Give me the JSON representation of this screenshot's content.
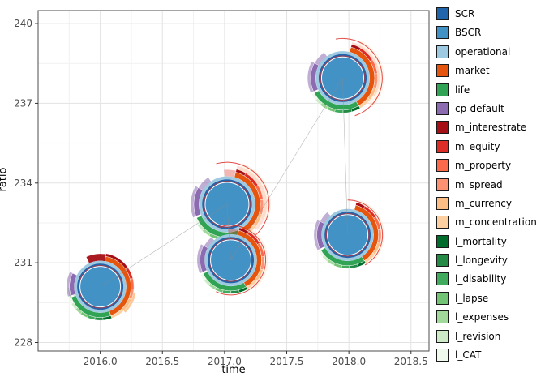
{
  "chart_data": {
    "type": "scatter",
    "title": "",
    "xlabel": "time",
    "ylabel": "ratio",
    "xlim": [
      2015.5,
      2018.645
    ],
    "ylim": [
      227.68,
      240.49
    ],
    "xtick_values": [
      2016.0,
      2016.5,
      2017.0,
      2017.5,
      2018.0,
      2018.5
    ],
    "xtick_labels": [
      "2016.0",
      "2016.5",
      "2017.0",
      "2017.5",
      "2018.0",
      "2018.5"
    ],
    "ytick_values": [
      228,
      231,
      234,
      237,
      240
    ],
    "ytick_labels": [
      "228",
      "231",
      "234",
      "237",
      "240"
    ],
    "grid": true,
    "legend_position": "right",
    "path_order": [
      0,
      1,
      2,
      4,
      3
    ],
    "colors": {
      "SCR": "#2166AC",
      "BSCR": "#4292C6",
      "operational": "#9ECAE1",
      "market": "#E6550D",
      "life": "#31A354",
      "cp_default": "#8C6BB1",
      "m_interestrate": "#A50F15",
      "m_equity": "#DE2D26",
      "m_property": "#FB6A4A",
      "m_spread": "#FC9272",
      "m_currency": "#FDBE85",
      "m_concentration": "#FDD0A2",
      "l_mortality": "#006D2C",
      "l_longevity": "#238B45",
      "l_disability": "#41AB5D",
      "l_lapse": "#74C476",
      "l_expenses": "#A1D99B",
      "l_revision": "#CDEBC6",
      "l_CAT": "#EFF9EC"
    },
    "points": [
      {
        "time": 2016.0,
        "ratio": 230.1,
        "r": 25,
        "spans": {
          "market": [
            10,
            160
          ],
          "life": [
            160,
            250
          ],
          "cp_default": [
            253,
            296
          ]
        },
        "m_fracs": [
          0.3,
          0.14,
          0.12,
          0.12,
          0.16,
          0.16
        ],
        "l_fracs": [
          0.17,
          0.16,
          0.15,
          0.14,
          0.13,
          0.13,
          0.12
        ],
        "ghosts": [
          {
            "key": "m_interestrate",
            "a0": -25,
            "a1": 12,
            "r0": 1.28,
            "r1": 1.62,
            "alpha": 0.95
          },
          {
            "key": "m_equity",
            "a0": 12,
            "a1": 45,
            "r0": 1.28,
            "r1": 1.5,
            "alpha": 0.85
          },
          {
            "key": "m_spread",
            "a0": 70,
            "a1": 100,
            "r0": 1.28,
            "r1": 1.5,
            "alpha": 0.6
          },
          {
            "key": "m_currency",
            "a0": 100,
            "a1": 136,
            "r0": 1.28,
            "r1": 1.78,
            "alpha": 0.85
          },
          {
            "key": "m_concentration",
            "a0": 136,
            "a1": 168,
            "r0": 1.28,
            "r1": 1.62,
            "alpha": 0.8
          },
          {
            "key": "l_lapse",
            "a0": 195,
            "a1": 232,
            "r0": 1.28,
            "r1": 1.47,
            "alpha": 0.5
          },
          {
            "key": "l_expenses",
            "a0": 232,
            "a1": 256,
            "r0": 1.28,
            "r1": 1.4,
            "alpha": 0.45
          }
        ],
        "strokes": [
          {
            "key": "l_expenses",
            "a0": 155,
            "a1": 268,
            "r": 1.56,
            "alpha": 0.9
          }
        ]
      },
      {
        "time": 2017.02,
        "ratio": 233.2,
        "r": 27,
        "spans": {
          "market": [
            15,
            150
          ],
          "life": [
            150,
            246
          ],
          "cp_default": [
            249,
            300
          ]
        },
        "m_fracs": [
          0.12,
          0.2,
          0.18,
          0.18,
          0.16,
          0.16
        ],
        "l_fracs": [
          0.16,
          0.16,
          0.15,
          0.15,
          0.14,
          0.12,
          0.12
        ],
        "ghosts": [
          {
            "key": "m_equity",
            "a0": -5,
            "a1": 55,
            "r0": 1.28,
            "r1": 1.58,
            "alpha": 0.35
          },
          {
            "key": "m_property",
            "a0": 55,
            "a1": 115,
            "r0": 1.28,
            "r1": 1.66,
            "alpha": 0.3
          },
          {
            "key": "m_spread",
            "a0": 15,
            "a1": 130,
            "r0": 1.28,
            "r1": 1.82,
            "alpha": 0.28
          },
          {
            "key": "m_concentration",
            "a0": 20,
            "a1": 112,
            "r0": 1.28,
            "r1": 2.0,
            "alpha": 0.25
          },
          {
            "key": "cp_default",
            "a0": 288,
            "a1": 325,
            "r0": 1.26,
            "r1": 1.5,
            "alpha": 0.55
          },
          {
            "key": "l_lapse",
            "a0": 185,
            "a1": 222,
            "r0": 1.28,
            "r1": 1.44,
            "alpha": 0.45
          }
        ],
        "strokes": [
          {
            "key": "m_equity",
            "a0": -15,
            "a1": 160,
            "r": 1.92,
            "alpha": 0.85
          },
          {
            "key": "m_equity",
            "a0": 25,
            "a1": 120,
            "r": 1.45,
            "alpha": 0.8
          }
        ]
      },
      {
        "time": 2017.05,
        "ratio": 231.1,
        "r": 25,
        "spans": {
          "market": [
            15,
            150
          ],
          "life": [
            150,
            244
          ],
          "cp_default": [
            247,
            298
          ]
        },
        "m_fracs": [
          0.13,
          0.2,
          0.18,
          0.17,
          0.16,
          0.16
        ],
        "l_fracs": [
          0.16,
          0.16,
          0.15,
          0.15,
          0.14,
          0.12,
          0.12
        ],
        "ghosts": [
          {
            "key": "m_equity",
            "a0": -5,
            "a1": 45,
            "r0": 1.28,
            "r1": 1.52,
            "alpha": 0.35
          },
          {
            "key": "m_spread",
            "a0": 20,
            "a1": 120,
            "r0": 1.28,
            "r1": 1.66,
            "alpha": 0.3
          },
          {
            "key": "m_concentration",
            "a0": 30,
            "a1": 138,
            "r0": 1.28,
            "r1": 1.85,
            "alpha": 0.25
          },
          {
            "key": "cp_default",
            "a0": 285,
            "a1": 320,
            "r0": 1.26,
            "r1": 1.48,
            "alpha": 0.55
          },
          {
            "key": "l_lapse",
            "a0": 185,
            "a1": 225,
            "r0": 1.28,
            "r1": 1.45,
            "alpha": 0.5
          }
        ],
        "strokes": [
          {
            "key": "m_equity",
            "a0": -20,
            "a1": 205,
            "r": 1.72,
            "alpha": 0.85
          }
        ]
      },
      {
        "time": 2017.99,
        "ratio": 232.05,
        "r": 25,
        "spans": {
          "market": [
            15,
            147
          ],
          "life": [
            147,
            240
          ],
          "cp_default": [
            243,
            296
          ]
        },
        "m_fracs": [
          0.12,
          0.2,
          0.18,
          0.18,
          0.16,
          0.16
        ],
        "l_fracs": [
          0.16,
          0.16,
          0.15,
          0.15,
          0.14,
          0.12,
          0.12
        ],
        "ghosts": [
          {
            "key": "m_spread",
            "a0": 25,
            "a1": 110,
            "r0": 1.28,
            "r1": 1.6,
            "alpha": 0.3
          },
          {
            "key": "m_concentration",
            "a0": 20,
            "a1": 132,
            "r0": 1.28,
            "r1": 1.82,
            "alpha": 0.27
          },
          {
            "key": "cp_default",
            "a0": 283,
            "a1": 318,
            "r0": 1.26,
            "r1": 1.5,
            "alpha": 0.55
          },
          {
            "key": "l_lapse",
            "a0": 182,
            "a1": 220,
            "r0": 1.28,
            "r1": 1.44,
            "alpha": 0.45
          }
        ],
        "strokes": [
          {
            "key": "m_equity",
            "a0": 0,
            "a1": 150,
            "r": 1.72,
            "alpha": 0.85
          }
        ]
      },
      {
        "time": 2017.95,
        "ratio": 237.95,
        "r": 26,
        "spans": {
          "market": [
            15,
            150
          ],
          "life": [
            150,
            242
          ],
          "cp_default": [
            245,
            298
          ]
        },
        "m_fracs": [
          0.12,
          0.2,
          0.18,
          0.18,
          0.16,
          0.16
        ],
        "l_fracs": [
          0.16,
          0.16,
          0.15,
          0.15,
          0.14,
          0.12,
          0.12
        ],
        "ghosts": [
          {
            "key": "m_spread",
            "a0": 15,
            "a1": 120,
            "r0": 1.28,
            "r1": 1.76,
            "alpha": 0.3
          },
          {
            "key": "m_concentration",
            "a0": 25,
            "a1": 135,
            "r0": 1.28,
            "r1": 1.98,
            "alpha": 0.22
          },
          {
            "key": "m_property",
            "a0": 40,
            "a1": 100,
            "r0": 1.28,
            "r1": 1.58,
            "alpha": 0.3
          },
          {
            "key": "cp_default",
            "a0": 288,
            "a1": 324,
            "r0": 1.26,
            "r1": 1.5,
            "alpha": 0.55
          },
          {
            "key": "l_lapse",
            "a0": 183,
            "a1": 222,
            "r0": 1.28,
            "r1": 1.44,
            "alpha": 0.45
          }
        ],
        "strokes": [
          {
            "key": "m_equity",
            "a0": -10,
            "a1": 162,
            "r": 1.88,
            "alpha": 0.85
          },
          {
            "key": "m_equity",
            "a0": 135,
            "a1": 195,
            "r": 1.4,
            "alpha": 0.8
          }
        ]
      }
    ]
  },
  "legend": {
    "items": [
      {
        "label": "SCR",
        "key": "SCR"
      },
      {
        "label": "BSCR",
        "key": "BSCR"
      },
      {
        "label": "operational",
        "key": "operational"
      },
      {
        "label": "market",
        "key": "market"
      },
      {
        "label": "life",
        "key": "life"
      },
      {
        "label": "cp-default",
        "key": "cp_default"
      },
      {
        "label": "m_interestrate",
        "key": "m_interestrate"
      },
      {
        "label": "m_equity",
        "key": "m_equity"
      },
      {
        "label": "m_property",
        "key": "m_property"
      },
      {
        "label": "m_spread",
        "key": "m_spread"
      },
      {
        "label": "m_currency",
        "key": "m_currency"
      },
      {
        "label": "m_concentration",
        "key": "m_concentration"
      },
      {
        "label": "l_mortality",
        "key": "l_mortality"
      },
      {
        "label": "l_longevity",
        "key": "l_longevity"
      },
      {
        "label": "l_disability",
        "key": "l_disability"
      },
      {
        "label": "l_lapse",
        "key": "l_lapse"
      },
      {
        "label": "l_expenses",
        "key": "l_expenses"
      },
      {
        "label": "l_revision",
        "key": "l_revision"
      },
      {
        "label": "l_CAT",
        "key": "l_CAT"
      }
    ]
  }
}
